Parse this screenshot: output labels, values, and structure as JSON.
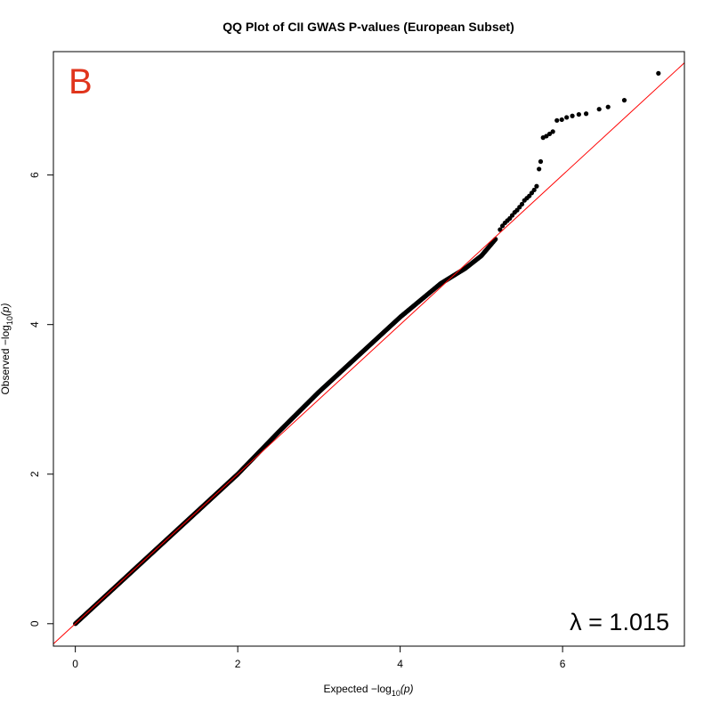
{
  "chart_data": {
    "type": "scatter",
    "title": "QQ Plot of CII GWAS P-values (European Subset)",
    "xlabel": {
      "prefix": "Expected  −log",
      "sub": "10",
      "suffix": "(p)"
    },
    "ylabel": {
      "prefix": "Observed  −log",
      "sub": "10",
      "suffix": "(p)"
    },
    "xlim": [
      -0.27,
      7.5
    ],
    "ylim": [
      -0.3,
      7.65
    ],
    "x_ticks": [
      {
        "value": 0,
        "label": "0"
      },
      {
        "value": 2,
        "label": "2"
      },
      {
        "value": 4,
        "label": "4"
      },
      {
        "value": 6,
        "label": "6"
      }
    ],
    "y_ticks": [
      {
        "value": 0,
        "label": "0"
      },
      {
        "value": 2,
        "label": "2"
      },
      {
        "value": 4,
        "label": "4"
      },
      {
        "value": 6,
        "label": "6"
      }
    ],
    "panel_label": "B",
    "annotation": "λ = 1.015",
    "grid": false,
    "reference_line": {
      "type": "identity",
      "color": "#ff0000"
    },
    "point_color": "#000000",
    "bulk_curve": [
      [
        0,
        0
      ],
      [
        0.5,
        0.5
      ],
      [
        1,
        1.0
      ],
      [
        1.5,
        1.5
      ],
      [
        2,
        2.0
      ],
      [
        2.5,
        2.56
      ],
      [
        3,
        3.1
      ],
      [
        3.5,
        3.6
      ],
      [
        4,
        4.1
      ],
      [
        4.5,
        4.55
      ],
      [
        4.8,
        4.75
      ],
      [
        5.0,
        4.92
      ],
      [
        5.18,
        5.15
      ]
    ],
    "tail_points": [
      [
        5.23,
        5.27
      ],
      [
        5.26,
        5.32
      ],
      [
        5.29,
        5.36
      ],
      [
        5.32,
        5.39
      ],
      [
        5.35,
        5.42
      ],
      [
        5.38,
        5.46
      ],
      [
        5.41,
        5.5
      ],
      [
        5.44,
        5.53
      ],
      [
        5.47,
        5.57
      ],
      [
        5.5,
        5.61
      ],
      [
        5.53,
        5.66
      ],
      [
        5.56,
        5.69
      ],
      [
        5.59,
        5.72
      ],
      [
        5.62,
        5.76
      ],
      [
        5.65,
        5.8
      ],
      [
        5.68,
        5.85
      ],
      [
        5.71,
        6.08
      ],
      [
        5.73,
        6.18
      ],
      [
        5.76,
        6.5
      ],
      [
        5.8,
        6.52
      ],
      [
        5.84,
        6.55
      ],
      [
        5.88,
        6.58
      ],
      [
        5.93,
        6.73
      ],
      [
        5.99,
        6.74
      ],
      [
        6.05,
        6.77
      ],
      [
        6.12,
        6.79
      ],
      [
        6.2,
        6.81
      ],
      [
        6.29,
        6.82
      ],
      [
        6.45,
        6.88
      ],
      [
        6.56,
        6.91
      ],
      [
        6.76,
        7.0
      ],
      [
        7.18,
        7.36
      ]
    ]
  }
}
